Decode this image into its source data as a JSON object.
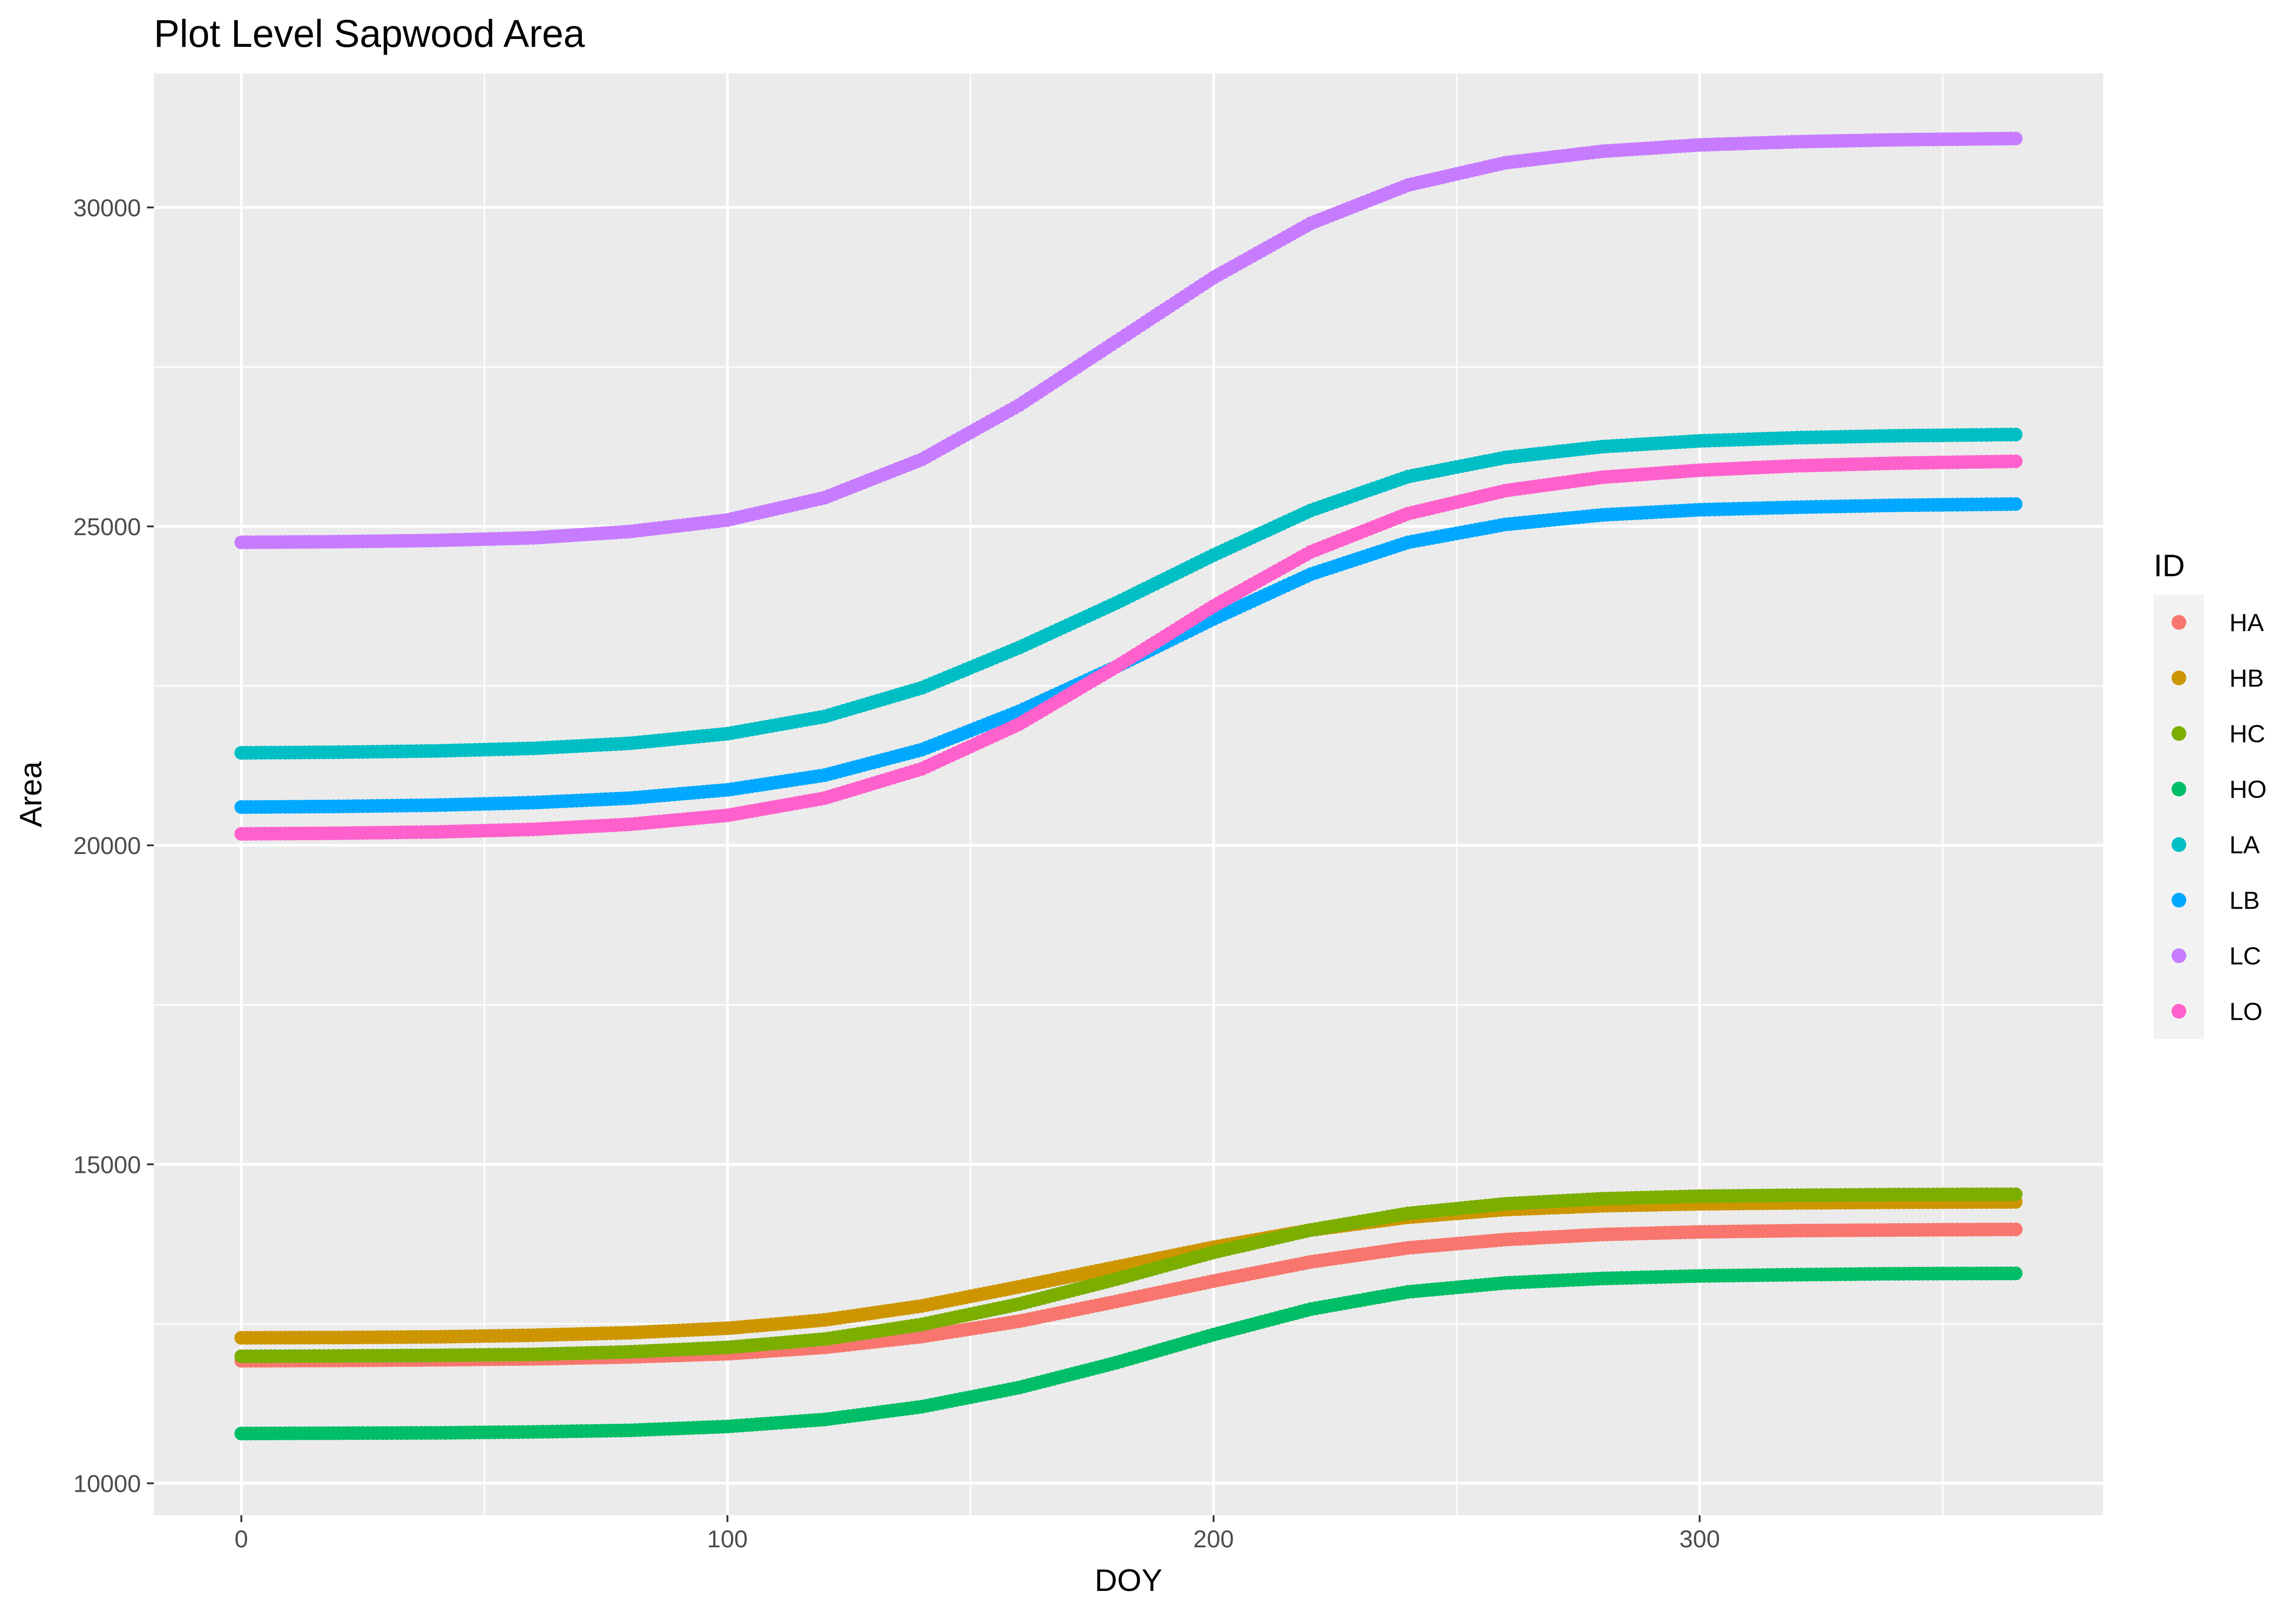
{
  "chart_data": {
    "type": "scatter",
    "title": "Plot Level Sapwood Area",
    "xlabel": "DOY",
    "ylabel": "Area",
    "xlim": [
      -18,
      383
    ],
    "ylim": [
      9500,
      32100
    ],
    "x_ticks": [
      0,
      100,
      200,
      300
    ],
    "x_minor_ticks": [
      50,
      150,
      250,
      350
    ],
    "y_ticks": [
      10000,
      15000,
      20000,
      25000,
      30000
    ],
    "y_minor_ticks": [
      12500,
      17500,
      22500,
      27500
    ],
    "x_ticks_labels": [
      "0",
      "100",
      "200",
      "300"
    ],
    "y_ticks_labels": [
      "10000",
      "15000",
      "20000",
      "25000",
      "30000"
    ],
    "grid": true,
    "legend": {
      "title": "ID",
      "position": "right"
    },
    "x": [
      0,
      20,
      40,
      60,
      80,
      100,
      120,
      140,
      160,
      180,
      200,
      220,
      240,
      260,
      280,
      300,
      320,
      340,
      365
    ],
    "series": [
      {
        "name": "HA",
        "color": "#F8766D",
        "values": [
          11920,
          11925,
          11935,
          11950,
          11980,
          12030,
          12130,
          12300,
          12540,
          12850,
          13170,
          13470,
          13690,
          13820,
          13900,
          13940,
          13960,
          13970,
          13980
        ]
      },
      {
        "name": "HB",
        "color": "#CD9600",
        "values": [
          12280,
          12285,
          12295,
          12320,
          12360,
          12430,
          12560,
          12780,
          13080,
          13390,
          13700,
          13970,
          14170,
          14290,
          14350,
          14380,
          14395,
          14405,
          14410
        ]
      },
      {
        "name": "HC",
        "color": "#7CAE00",
        "values": [
          11990,
          11995,
          12005,
          12020,
          12060,
          12130,
          12260,
          12490,
          12810,
          13200,
          13620,
          13970,
          14230,
          14380,
          14460,
          14500,
          14515,
          14525,
          14530
        ]
      },
      {
        "name": "HO",
        "color": "#00BE67",
        "values": [
          10780,
          10785,
          10790,
          10805,
          10830,
          10890,
          11000,
          11200,
          11500,
          11890,
          12330,
          12730,
          13000,
          13140,
          13210,
          13250,
          13270,
          13285,
          13290
        ]
      },
      {
        "name": "LA",
        "color": "#00BFC4",
        "values": [
          21450,
          21460,
          21480,
          21520,
          21600,
          21750,
          22020,
          22470,
          23100,
          23800,
          24550,
          25250,
          25780,
          26080,
          26250,
          26340,
          26390,
          26420,
          26440
        ]
      },
      {
        "name": "LB",
        "color": "#00A9FF",
        "values": [
          20600,
          20610,
          20630,
          20670,
          20740,
          20870,
          21100,
          21500,
          22100,
          22800,
          23550,
          24250,
          24750,
          25030,
          25180,
          25260,
          25300,
          25330,
          25350
        ]
      },
      {
        "name": "LC",
        "color": "#C77CFF",
        "values": [
          24750,
          24760,
          24780,
          24820,
          24920,
          25100,
          25450,
          26050,
          26900,
          27900,
          28900,
          29750,
          30350,
          30700,
          30880,
          30980,
          31030,
          31060,
          31080
        ]
      },
      {
        "name": "LO",
        "color": "#FF61CC",
        "values": [
          20180,
          20190,
          20210,
          20250,
          20330,
          20470,
          20740,
          21200,
          21900,
          22800,
          23750,
          24600,
          25200,
          25560,
          25770,
          25880,
          25950,
          25990,
          26020
        ]
      }
    ]
  }
}
